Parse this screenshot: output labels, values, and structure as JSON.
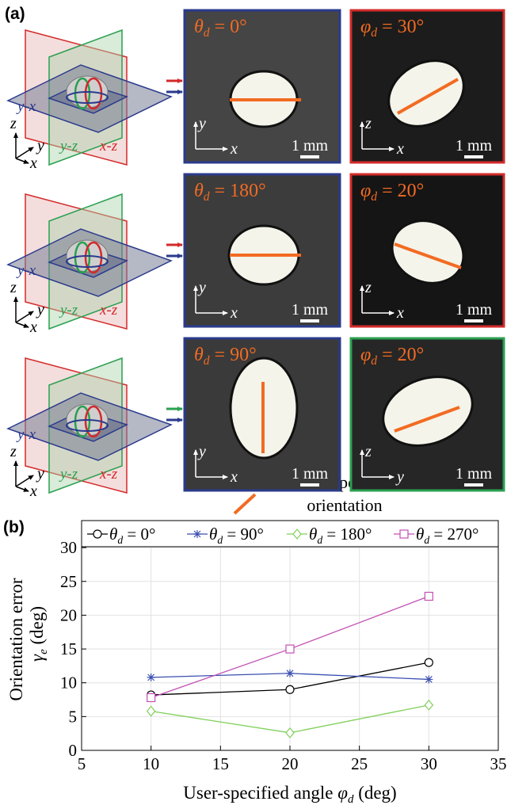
{
  "panel_a": {
    "label": "(a)",
    "rows": [
      {
        "planes": [
          "y-x",
          "y-z",
          "x-z"
        ],
        "triad": [
          "z",
          "y",
          "x"
        ],
        "images": [
          {
            "text": "θd = 0°",
            "axes": [
              "y",
              "x"
            ],
            "scale": "1 mm"
          },
          {
            "text": "φd = 30°",
            "axes": [
              "z",
              "x"
            ],
            "scale": "1 mm"
          }
        ]
      },
      {
        "planes": [
          "y-x",
          "y-z",
          "x-z"
        ],
        "triad": [
          "z",
          "y",
          "x"
        ],
        "images": [
          {
            "text": "θd = 180°",
            "axes": [
              "y",
              "x"
            ],
            "scale": "1 mm"
          },
          {
            "text": "φd = 20°",
            "axes": [
              "z",
              "x"
            ],
            "scale": "1 mm"
          }
        ]
      },
      {
        "planes": [
          "y-x",
          "y-z",
          "x-z"
        ],
        "triad": [
          "z",
          "y",
          "x"
        ],
        "images": [
          {
            "text": "θd = 90°",
            "axes": [
              "y",
              "x"
            ],
            "scale": "1 mm"
          },
          {
            "text": "φd = 20°",
            "axes": [
              "z",
              "y"
            ],
            "scale": "1 mm"
          }
        ]
      }
    ],
    "legend": [
      "User-specified",
      "orientation"
    ]
  },
  "panel_b": {
    "label": "(b)"
  },
  "chart_data": {
    "type": "line",
    "x": [
      10,
      20,
      30
    ],
    "series": [
      {
        "name": "θd = 0°",
        "color": "#000000",
        "marker": "circle",
        "values": [
          8.2,
          9.0,
          13.0
        ]
      },
      {
        "name": "θd = 90°",
        "color": "#3a4fb0",
        "marker": "asterisk",
        "values": [
          10.8,
          11.4,
          10.5
        ]
      },
      {
        "name": "θd = 180°",
        "color": "#7fcf5a",
        "marker": "diamond",
        "values": [
          5.8,
          2.6,
          6.7
        ]
      },
      {
        "name": "θd = 270°",
        "color": "#c24fb5",
        "marker": "square",
        "values": [
          7.8,
          15.0,
          22.8
        ]
      }
    ],
    "xlim": [
      5,
      35
    ],
    "xticks": [
      5,
      10,
      15,
      20,
      25,
      30,
      35
    ],
    "ylim": [
      0,
      34
    ],
    "yticks": [
      0,
      5,
      10,
      15,
      20,
      25,
      30
    ],
    "xlabel": "User-specified angle φd (deg)",
    "ylabel": [
      "Orientation error",
      "γe (deg)"
    ],
    "grid": true,
    "legend": "top"
  }
}
